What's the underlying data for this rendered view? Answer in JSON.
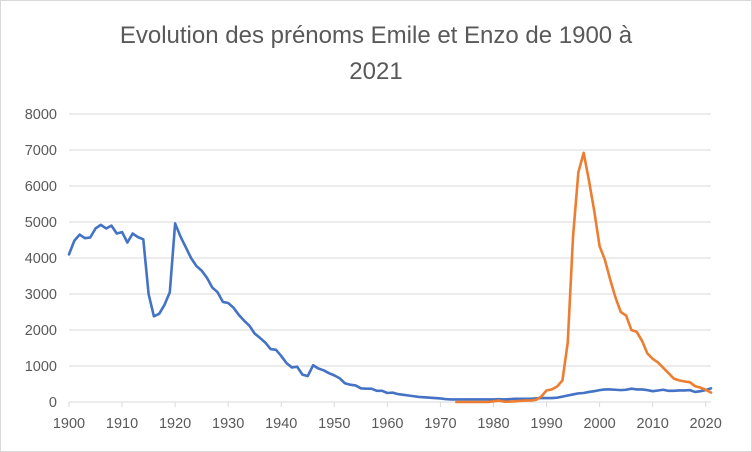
{
  "chart_data": {
    "type": "line",
    "title_line1": "Evolution des prénoms Emile et Enzo de 1900 à",
    "title_line2": "2021",
    "xlim": [
      1900,
      2021
    ],
    "ylim": [
      0,
      8000
    ],
    "x_ticks": [
      1900,
      1910,
      1920,
      1930,
      1940,
      1950,
      1960,
      1970,
      1980,
      1990,
      2000,
      2010,
      2020
    ],
    "y_ticks": [
      0,
      1000,
      2000,
      3000,
      4000,
      5000,
      6000,
      7000,
      8000
    ],
    "grid": "horizontal",
    "legend": "none",
    "series": [
      {
        "color": "#4472C4",
        "points": [
          [
            1900,
            4100
          ],
          [
            1901,
            4480
          ],
          [
            1902,
            4650
          ],
          [
            1903,
            4550
          ],
          [
            1904,
            4570
          ],
          [
            1905,
            4820
          ],
          [
            1906,
            4920
          ],
          [
            1907,
            4820
          ],
          [
            1908,
            4900
          ],
          [
            1909,
            4680
          ],
          [
            1910,
            4720
          ],
          [
            1911,
            4430
          ],
          [
            1912,
            4680
          ],
          [
            1913,
            4580
          ],
          [
            1914,
            4520
          ],
          [
            1915,
            3000
          ],
          [
            1916,
            2380
          ],
          [
            1917,
            2450
          ],
          [
            1918,
            2700
          ],
          [
            1919,
            3050
          ],
          [
            1920,
            4960
          ],
          [
            1921,
            4600
          ],
          [
            1922,
            4300
          ],
          [
            1923,
            4000
          ],
          [
            1924,
            3780
          ],
          [
            1925,
            3650
          ],
          [
            1926,
            3450
          ],
          [
            1927,
            3180
          ],
          [
            1928,
            3050
          ],
          [
            1929,
            2780
          ],
          [
            1930,
            2750
          ],
          [
            1931,
            2620
          ],
          [
            1932,
            2420
          ],
          [
            1933,
            2260
          ],
          [
            1934,
            2120
          ],
          [
            1935,
            1900
          ],
          [
            1936,
            1780
          ],
          [
            1937,
            1650
          ],
          [
            1938,
            1470
          ],
          [
            1939,
            1450
          ],
          [
            1940,
            1280
          ],
          [
            1941,
            1080
          ],
          [
            1942,
            960
          ],
          [
            1943,
            980
          ],
          [
            1944,
            760
          ],
          [
            1945,
            720
          ],
          [
            1946,
            1020
          ],
          [
            1947,
            930
          ],
          [
            1948,
            880
          ],
          [
            1949,
            800
          ],
          [
            1950,
            740
          ],
          [
            1951,
            660
          ],
          [
            1952,
            520
          ],
          [
            1953,
            480
          ],
          [
            1954,
            460
          ],
          [
            1955,
            380
          ],
          [
            1956,
            370
          ],
          [
            1957,
            370
          ],
          [
            1958,
            310
          ],
          [
            1959,
            310
          ],
          [
            1960,
            250
          ],
          [
            1961,
            260
          ],
          [
            1962,
            220
          ],
          [
            1963,
            200
          ],
          [
            1964,
            180
          ],
          [
            1965,
            160
          ],
          [
            1966,
            140
          ],
          [
            1967,
            130
          ],
          [
            1968,
            120
          ],
          [
            1969,
            110
          ],
          [
            1970,
            100
          ],
          [
            1971,
            80
          ],
          [
            1972,
            70
          ],
          [
            1973,
            70
          ],
          [
            1974,
            70
          ],
          [
            1975,
            70
          ],
          [
            1976,
            70
          ],
          [
            1977,
            70
          ],
          [
            1978,
            70
          ],
          [
            1979,
            70
          ],
          [
            1980,
            70
          ],
          [
            1981,
            80
          ],
          [
            1982,
            70
          ],
          [
            1983,
            80
          ],
          [
            1984,
            90
          ],
          [
            1985,
            90
          ],
          [
            1986,
            90
          ],
          [
            1987,
            90
          ],
          [
            1988,
            100
          ],
          [
            1989,
            110
          ],
          [
            1990,
            110
          ],
          [
            1991,
            110
          ],
          [
            1992,
            120
          ],
          [
            1993,
            150
          ],
          [
            1994,
            180
          ],
          [
            1995,
            210
          ],
          [
            1996,
            240
          ],
          [
            1997,
            250
          ],
          [
            1998,
            280
          ],
          [
            1999,
            300
          ],
          [
            2000,
            330
          ],
          [
            2001,
            350
          ],
          [
            2002,
            350
          ],
          [
            2003,
            340
          ],
          [
            2004,
            330
          ],
          [
            2005,
            340
          ],
          [
            2006,
            370
          ],
          [
            2007,
            350
          ],
          [
            2008,
            350
          ],
          [
            2009,
            330
          ],
          [
            2010,
            300
          ],
          [
            2011,
            320
          ],
          [
            2012,
            340
          ],
          [
            2013,
            310
          ],
          [
            2014,
            310
          ],
          [
            2015,
            320
          ],
          [
            2016,
            320
          ],
          [
            2017,
            330
          ],
          [
            2018,
            280
          ],
          [
            2019,
            300
          ],
          [
            2020,
            330
          ],
          [
            2021,
            380
          ]
        ]
      },
      {
        "color": "#ED7D31",
        "points": [
          [
            1973,
            0
          ],
          [
            1974,
            0
          ],
          [
            1975,
            0
          ],
          [
            1976,
            0
          ],
          [
            1977,
            0
          ],
          [
            1978,
            0
          ],
          [
            1979,
            0
          ],
          [
            1980,
            20
          ],
          [
            1981,
            40
          ],
          [
            1982,
            10
          ],
          [
            1983,
            10
          ],
          [
            1984,
            20
          ],
          [
            1985,
            30
          ],
          [
            1986,
            40
          ],
          [
            1987,
            40
          ],
          [
            1988,
            60
          ],
          [
            1989,
            150
          ],
          [
            1990,
            320
          ],
          [
            1991,
            350
          ],
          [
            1992,
            430
          ],
          [
            1993,
            600
          ],
          [
            1994,
            1650
          ],
          [
            1995,
            4600
          ],
          [
            1996,
            6380
          ],
          [
            1997,
            6920
          ],
          [
            1998,
            6150
          ],
          [
            1999,
            5300
          ],
          [
            2000,
            4330
          ],
          [
            2001,
            3950
          ],
          [
            2002,
            3400
          ],
          [
            2003,
            2900
          ],
          [
            2004,
            2500
          ],
          [
            2005,
            2400
          ],
          [
            2006,
            2000
          ],
          [
            2007,
            1950
          ],
          [
            2008,
            1700
          ],
          [
            2009,
            1350
          ],
          [
            2010,
            1200
          ],
          [
            2011,
            1100
          ],
          [
            2012,
            950
          ],
          [
            2013,
            800
          ],
          [
            2014,
            650
          ],
          [
            2015,
            600
          ],
          [
            2016,
            570
          ],
          [
            2017,
            550
          ],
          [
            2018,
            440
          ],
          [
            2019,
            400
          ],
          [
            2020,
            340
          ],
          [
            2021,
            260
          ]
        ]
      }
    ]
  }
}
